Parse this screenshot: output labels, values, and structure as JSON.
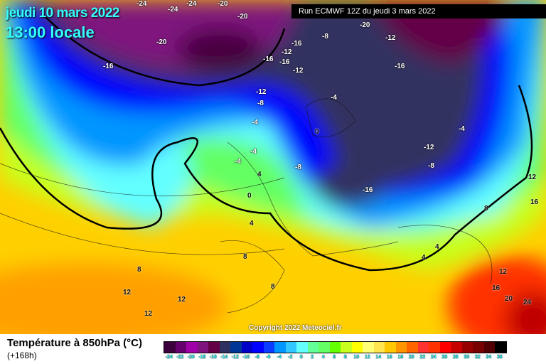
{
  "header": {
    "date": "jeudi 10 mars 2022",
    "local_time": "13:00 locale",
    "run": "Run ECMWF 12Z du jeudi 3 mars 2022"
  },
  "copyright": "Copyright 2022 Meteociel.fr",
  "legend": {
    "title": "Température à 850hPa (°C)",
    "subtitle": "(+168h)",
    "ticks": [
      "-24",
      "-22",
      "-20",
      "-18",
      "-16",
      "-14",
      "-12",
      "-10",
      "-8",
      "-6",
      "-4",
      "-2",
      "0",
      "2",
      "4",
      "6",
      "8",
      "10",
      "12",
      "14",
      "16",
      "18",
      "20",
      "22",
      "24",
      "26",
      "28",
      "30",
      "32",
      "34",
      "36"
    ],
    "colors": [
      "#3c003c",
      "#66006e",
      "#a000a8",
      "#7e137e",
      "#640046",
      "#303060",
      "#003796",
      "#0000c8",
      "#0000ff",
      "#0a3cff",
      "#0096ff",
      "#32c8ff",
      "#64ffff",
      "#64ff96",
      "#64ff64",
      "#64ff00",
      "#c8ff1e",
      "#ffff00",
      "#ffff78",
      "#ffe650",
      "#ffc800",
      "#ff9600",
      "#ff6400",
      "#ff3232",
      "#ff3200",
      "#ff0000",
      "#c80000",
      "#960000",
      "#780000",
      "#500000",
      "#000000"
    ]
  },
  "map_labels": [
    "-24",
    "-24",
    "-24",
    "-20",
    "-20",
    "-20",
    "-20",
    "-16",
    "-16",
    "-16",
    "-12",
    "-16",
    "-12",
    "-8",
    "-12",
    "-16",
    "-12",
    "-8",
    "-4",
    "-4",
    "0",
    "-4",
    "-8",
    "-12",
    "-8",
    "-4",
    "-16",
    "4",
    "0",
    "-4",
    "4",
    "8",
    "8",
    "8",
    "12",
    "12",
    "12",
    "4",
    "4",
    "8",
    "12",
    "16",
    "12",
    "16",
    "20",
    "24"
  ]
}
